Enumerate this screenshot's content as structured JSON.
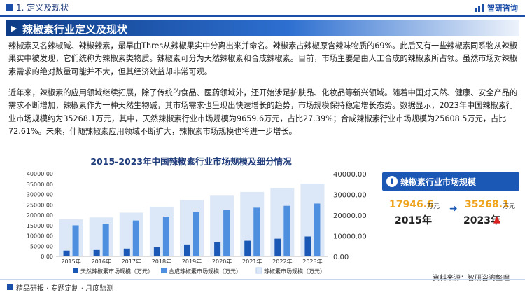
{
  "header": {
    "section": "1. 定义及现状",
    "brand": "智研咨询"
  },
  "banner": {
    "title": "辣椒素行业定义及现状"
  },
  "paragraphs": [
    "辣椒素又名辣椒碱、辣椒辣素，最早由Thres从辣椒果实中分离出来并命名。辣椒素占辣椒原含辣味物质的69%。此后又有一些辣椒素同系物从辣椒果实中被发现，它们统称为辣椒素类物质。辣椒素可分为天然辣椒素和合成辣椒素。目前，市场主要是由人工合成的辣椒素所占领。虽然市场对辣椒素需求的绝对数量可能并不大，但其经济效益却非常可观。",
    "近年来，辣椒素的应用领域继续拓展，除了传统的食品、医药领域外，还开始涉足护肤品、化妆品等新兴领域。随着中国对天然、健康、安全产品的需求不断增加，辣椒素作为一种天然生物碱，其市场需求也呈现出快速增长的趋势，市场规模保持稳定增长态势。数据显示，2023年中国辣椒素行业市场规模约为35268.1万元，其中，天然辣椒素行业市场规模为9659.6万元，占比27.39%；合成辣椒素行业市场规模为25608.5万元，占比72.61%。未来，伴随辣椒素应用领域不断扩大，辣椒素市场规模也将进一步增长。"
  ],
  "chart_data": {
    "type": "bar",
    "title": "2015-2023年中国辣椒素行业市场规模及细分情况",
    "categories": [
      "2015年",
      "2016年",
      "2017年",
      "2018年",
      "2019年",
      "2020年",
      "2021年",
      "2022年",
      "2023年"
    ],
    "series": [
      {
        "name": "天然辣椒素市场规模（万元）",
        "axis": "left",
        "color": "#1b57b5",
        "values": [
          2800,
          3100,
          3800,
          4700,
          5800,
          6900,
          7600,
          8600,
          9659.6
        ]
      },
      {
        "name": "合成辣椒素市场规模（万元）",
        "axis": "left",
        "color": "#4f8fe0",
        "values": [
          15100,
          15800,
          17400,
          19300,
          21500,
          22500,
          23600,
          24500,
          25608.5
        ]
      },
      {
        "name": "辣椒素市场规模（万元）",
        "axis": "right",
        "color": "#dce8f7",
        "values": [
          17946.6,
          18900,
          21200,
          24000,
          27300,
          29400,
          31200,
          33100,
          35268.1
        ]
      }
    ],
    "yleft": {
      "lim": [
        0,
        40000
      ],
      "ticks": [
        "0.00",
        "5000.00",
        "10000.00",
        "15000.00",
        "20000.00",
        "25000.00",
        "30000.00",
        "35000.00",
        "40000.00"
      ]
    },
    "yright": {
      "lim": [
        0,
        40000
      ],
      "ticks": [
        "0.00",
        "10000.00",
        "20000.00",
        "30000.00",
        "40000.00"
      ]
    },
    "legend": "bottom"
  },
  "panel": {
    "title": "辣椒素行业市场规模",
    "icon": "bar-chart-icon",
    "left_value": "17946.6",
    "left_unit": "万元",
    "left_year": "2015年",
    "right_value": "35268.1",
    "right_unit": "万元",
    "right_year": "2023年"
  },
  "source": "资料来源：智研咨询整理",
  "footer": {
    "note": "精品研报 · 专题定制 · 月度监测"
  }
}
